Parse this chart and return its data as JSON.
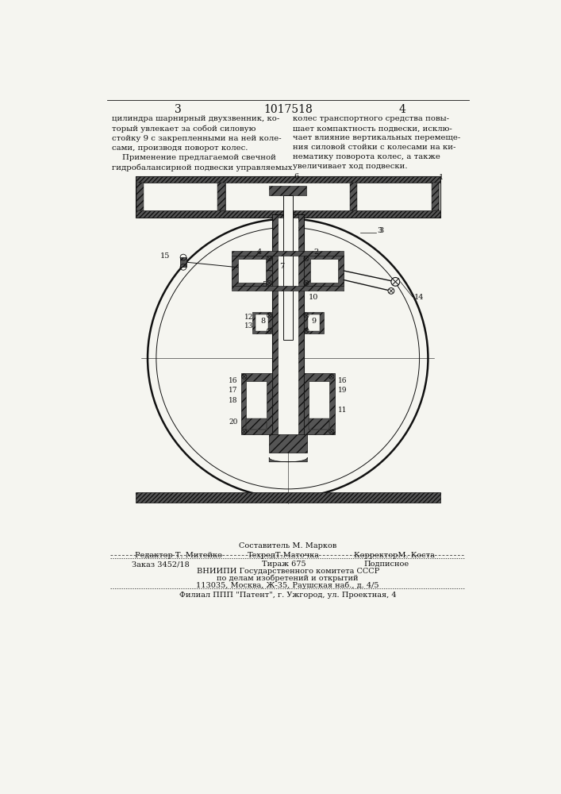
{
  "page_number_left": "3",
  "patent_number": "1017518",
  "page_number_right": "4",
  "text_left": "цилиндра шарнирный двухзвенник, ко-\nторый увлекает за собой силовую\nстойку 9 с закрепленными на ней коле-\nсами, производя поворот колес.\n    Применение предлагаемой свечной\nгидробалансирной подвески управляемых",
  "text_right": "колес транспортного средства повы-\nшает компактность подвески, исклю-\nчает влияние вертикальных перемеще-\nния силовой стойки с колесами на ки-\nнематику поворота колес, а также\nувеличивает ход подвески.",
  "footer_compose": "Составитель М. Марков",
  "footer_editor": "Редактор Т. Митейко",
  "footer_techred": "ТехредТ.Маточка",
  "footer_corrector": "КорректорМ. Коста",
  "footer_order": "Заказ 3452/18",
  "footer_edition": "Тираж 675",
  "footer_type": "Подписное",
  "footer_org1": "ВНИИПИ Государственного комитета СССР",
  "footer_org2": "по делам изобретений и открытий",
  "footer_org3": "113035, Москва, Ж-35, Раушская наб., д. 4/5",
  "footer_branch": "Филиал ППП \"Патент\", г. Ужгород, ул. Проектная, 4",
  "bg_color": "#f5f5f0",
  "hatch_color": "#555555",
  "line_color": "#111111"
}
